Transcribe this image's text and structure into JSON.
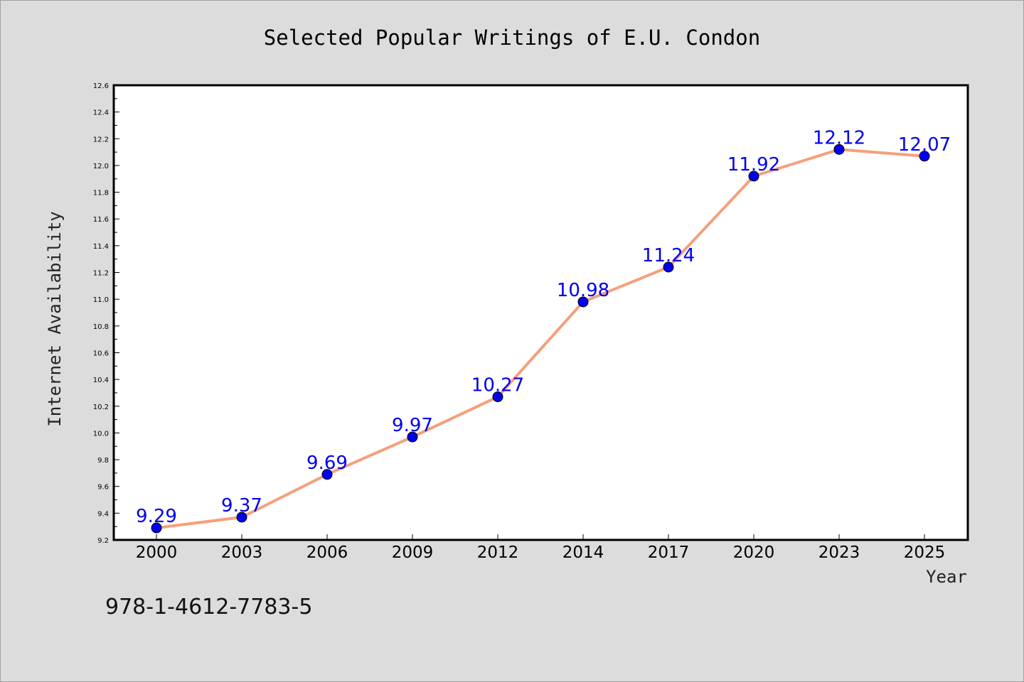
{
  "isbn_note": "978-1-4612-7783-5",
  "chart_data": {
    "type": "line",
    "title": "Selected Popular Writings of E.U. Condon",
    "xlabel": "Year",
    "ylabel": "Internet Availability",
    "categories": [
      "2000",
      "2003",
      "2006",
      "2009",
      "2012",
      "2014",
      "2017",
      "2020",
      "2023",
      "2025"
    ],
    "series": [
      {
        "values": [
          9.29,
          9.37,
          9.69,
          9.97,
          10.27,
          10.98,
          11.24,
          11.92,
          12.12,
          12.07
        ],
        "data_labels": [
          "9.29",
          "9.37",
          "9.69",
          "9.97",
          "10.27",
          "10.98",
          "11.24",
          "11.92",
          "12.12",
          "12.07"
        ],
        "line_color": "#f4a07c",
        "marker_color": "#0000ee"
      }
    ],
    "ylim": [
      9.2,
      12.6
    ],
    "y_ticks": [
      "9.2",
      "9.4",
      "9.6",
      "9.8",
      "10.0",
      "10.2",
      "10.4",
      "10.6",
      "10.8",
      "11.0",
      "11.2",
      "11.4",
      "11.6",
      "11.8",
      "12.0",
      "12.2",
      "12.4",
      "12.6"
    ],
    "grid": false,
    "legend": "none"
  }
}
